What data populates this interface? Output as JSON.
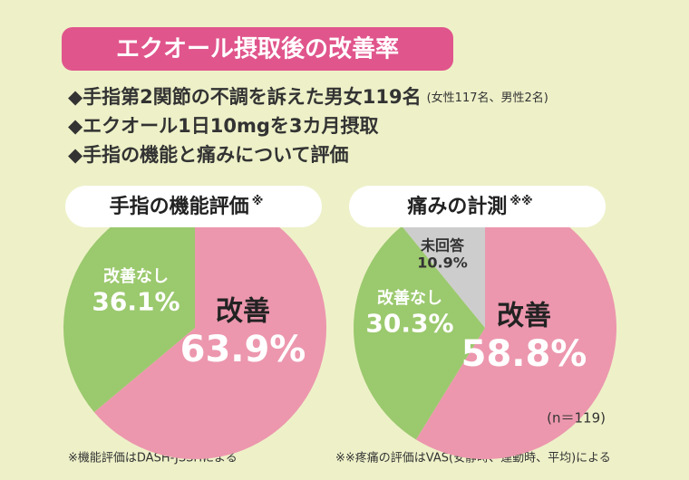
{
  "header": {
    "title": "エクオール摂取後の改善率",
    "bullets": [
      "◆手指第2関節の不調を訴えた男女119名",
      "◆エクオール1日10mgを3カ月摂取",
      "◆手指の機能と痛みについて評価"
    ],
    "bullet_note": "(女性117名、男性2名)"
  },
  "chart_data": [
    {
      "type": "pie",
      "title": "手指の機能評価",
      "title_mark": "※",
      "categories": [
        "改善",
        "改善なし"
      ],
      "values": [
        63.9,
        36.1
      ],
      "value_labels": [
        "63.9%",
        "36.1%"
      ],
      "colors": [
        "#ec97ae",
        "#9bc96e"
      ]
    },
    {
      "type": "pie",
      "title": "痛みの計測",
      "title_mark": "※※",
      "categories": [
        "改善",
        "改善なし",
        "未回答"
      ],
      "values": [
        58.8,
        30.3,
        10.9
      ],
      "value_labels": [
        "58.8%",
        "30.3%",
        "10.9%"
      ],
      "colors": [
        "#ec97ae",
        "#9bc96e",
        "#cdcdcd"
      ],
      "note": "(n＝119)"
    }
  ],
  "footnotes": [
    "※機能評価はDASH-JSSHによる",
    "※※疼痛の評価はVAS(安静時、運動時、平均)による"
  ]
}
